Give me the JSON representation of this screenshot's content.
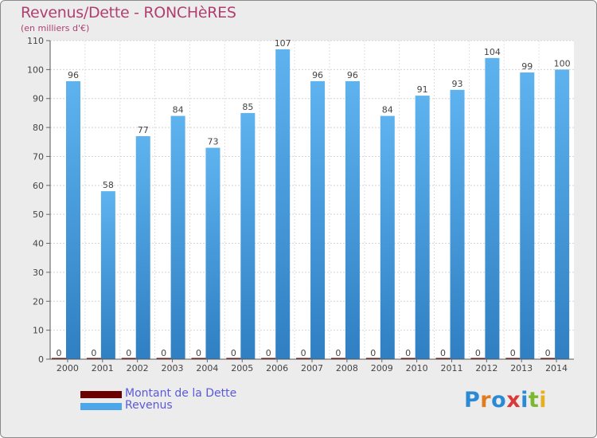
{
  "chart_data": {
    "type": "bar",
    "title": "Revenus/Dette - RONCHèRES",
    "subtitle": "(en milliers d'€)",
    "categories": [
      "2000",
      "2001",
      "2002",
      "2003",
      "2004",
      "2005",
      "2006",
      "2007",
      "2008",
      "2009",
      "2010",
      "2011",
      "2012",
      "2013",
      "2014"
    ],
    "series": [
      {
        "name": "Montant de la Dette",
        "color": "#6b0000",
        "values": [
          0,
          0,
          0,
          0,
          0,
          0,
          0,
          0,
          0,
          0,
          0,
          0,
          0,
          0,
          0
        ]
      },
      {
        "name": "Revenus",
        "color": "#4da6e8",
        "values": [
          96,
          58,
          77,
          84,
          73,
          85,
          107,
          96,
          96,
          84,
          91,
          93,
          104,
          99,
          100
        ]
      }
    ],
    "ylim": [
      0,
      110
    ],
    "yticks": [
      0,
      10,
      20,
      30,
      40,
      50,
      60,
      70,
      80,
      90,
      100,
      110
    ],
    "grid": true,
    "legend_position": "bottom-left"
  },
  "logo": {
    "letters": [
      "P",
      "r",
      "o",
      "x",
      "i",
      "t",
      "i"
    ],
    "colors": [
      "#2a8ad4",
      "#e07b20",
      "#2a8ad4",
      "#d83a3a",
      "#2a8ad4",
      "#7cb82f",
      "#e8b020"
    ]
  }
}
